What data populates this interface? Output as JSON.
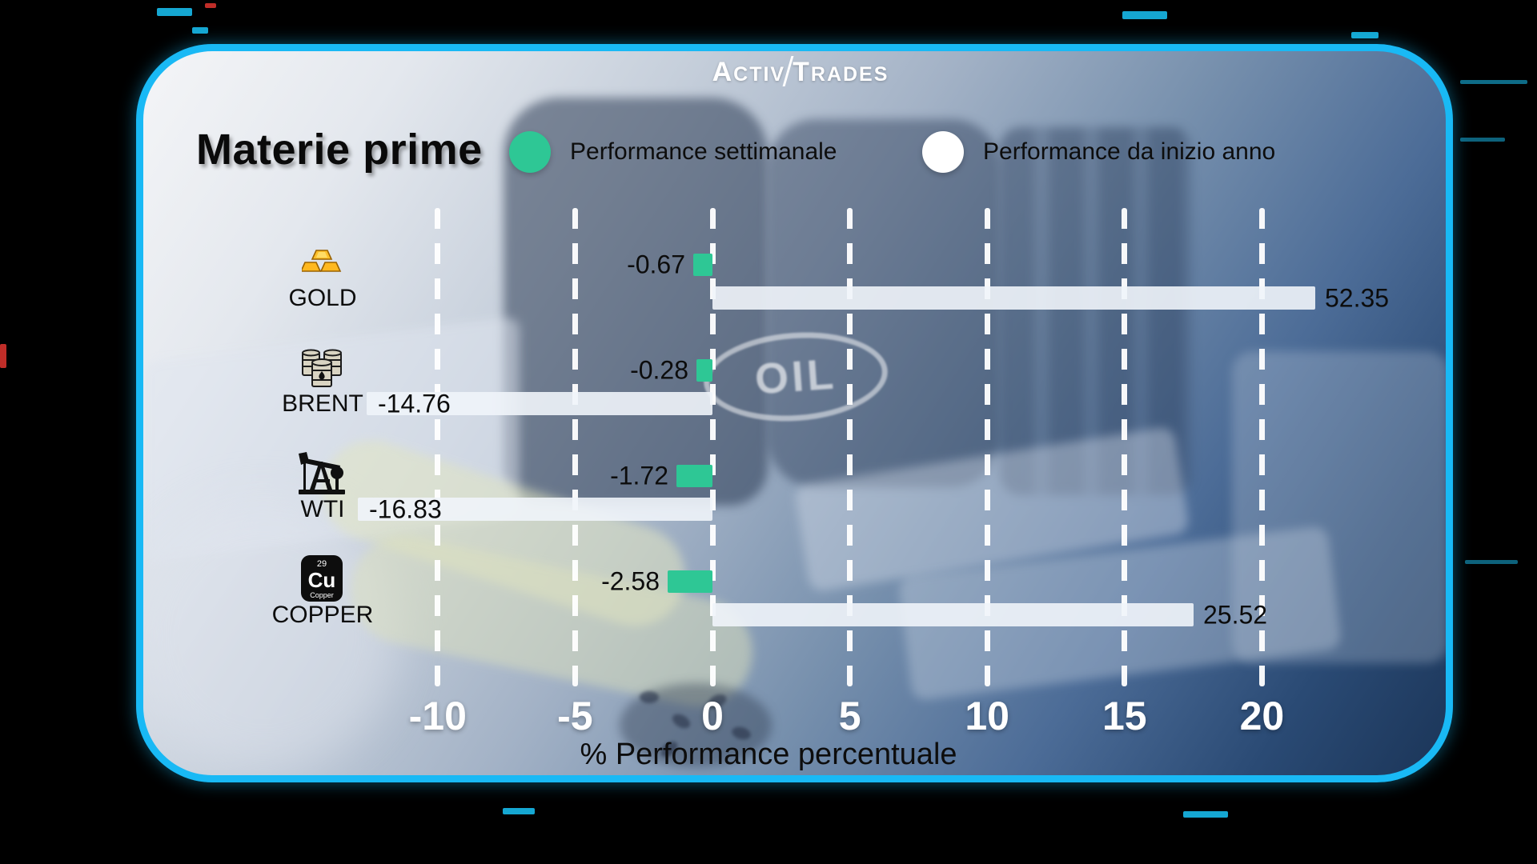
{
  "brand": {
    "name": "ActivTrades",
    "part1_initial": "A",
    "part1_rest": "CTIV",
    "part2_initial": "T",
    "part2_rest": "RADES"
  },
  "header": {
    "title": "Materie prime",
    "legend": [
      {
        "label": "Performance settimanale",
        "color": "#2EC795"
      },
      {
        "label": "Performance da inizio anno",
        "color": "#FFFFFF"
      }
    ]
  },
  "background": {
    "barrel_text": "OIL"
  },
  "chart_data": {
    "type": "bar",
    "orientation": "horizontal",
    "title": "Materie prime",
    "categories": [
      "GOLD",
      "BRENT",
      "WTI",
      "COPPER"
    ],
    "category_icons": [
      "gold-bars",
      "oil-barrels",
      "oil-pump",
      "copper-element"
    ],
    "series": [
      {
        "name": "Performance settimanale",
        "color": "#2EC795",
        "values": [
          -0.67,
          -0.28,
          -1.72,
          -2.58
        ]
      },
      {
        "name": "Performance da inizio anno",
        "color": "#F0F4F9",
        "values": [
          52.35,
          -14.76,
          -16.83,
          25.52
        ]
      }
    ],
    "xlabel": "% Performance percentuale",
    "x_ticks": [
      -10,
      -5,
      0,
      5,
      10,
      15,
      20
    ],
    "xlim": [
      -13,
      22.2
    ],
    "grid": "dashed-vertical-white",
    "legend_position": "top",
    "value_label_decimals": 2,
    "copper_tile": {
      "number": "29",
      "symbol": "Cu",
      "label": "Copper"
    }
  }
}
